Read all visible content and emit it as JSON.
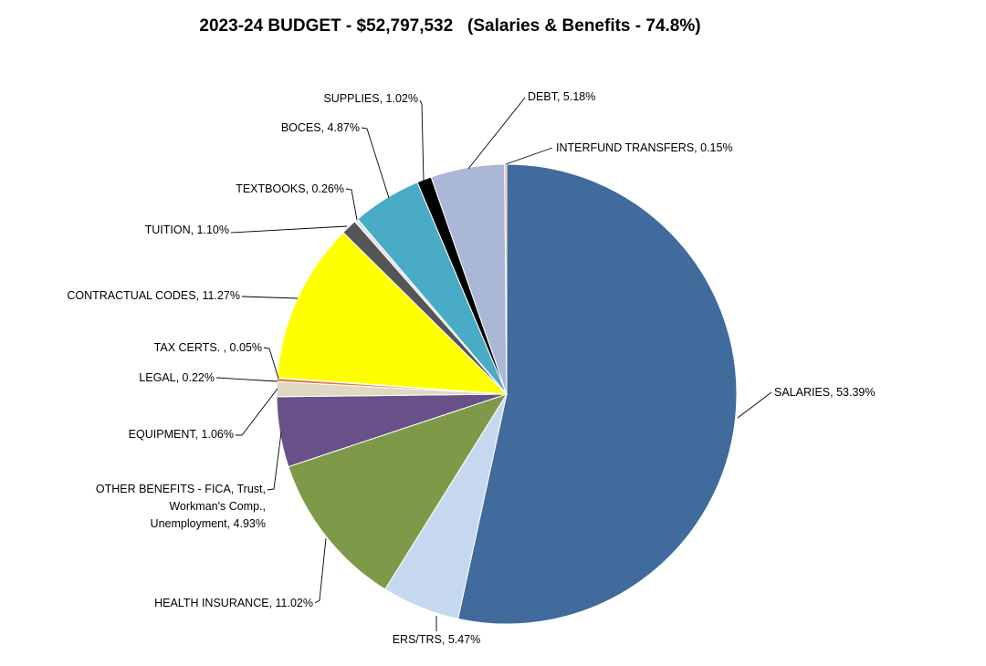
{
  "chart_data": {
    "type": "pie",
    "title": "2023-24 BUDGET - $52,797,532   (Salaries & Benefits - 74.8%)",
    "start_angle_deg": 0,
    "direction": "clockwise",
    "slices": [
      {
        "label": "SALARIES, 53.39%",
        "value": 53.39,
        "color": "#406b9c"
      },
      {
        "label": "ERS/TRS, 5.47%",
        "value": 5.47,
        "color": "#c6d8ef"
      },
      {
        "label": "HEALTH INSURANCE, 11.02%",
        "value": 11.02,
        "color": "#7e9a48"
      },
      {
        "label": "OTHER BENEFITS - FICA, Trust, Workman's Comp., Unemployment, 4.93%",
        "label_lines": [
          "OTHER BENEFITS - FICA, Trust,",
          "Workman's Comp.,",
          "Unemployment, 4.93%"
        ],
        "value": 4.93,
        "color": "#6a5088"
      },
      {
        "label": "EQUIPMENT, 1.06%",
        "value": 1.06,
        "color": "#ddd9c3"
      },
      {
        "label": "LEGAL, 0.22%",
        "value": 0.22,
        "color": "#e07b39"
      },
      {
        "label": "TAX CERTS. , 0.05%",
        "value": 0.05,
        "color": "#9c3230"
      },
      {
        "label": "CONTRACTUAL CODES, 11.27%",
        "value": 11.27,
        "color": "#ffff00"
      },
      {
        "label": "TUITION, 1.10%",
        "value": 1.1,
        "color": "#555555"
      },
      {
        "label": "TEXTBOOKS, 0.26%",
        "value": 0.26,
        "color": "#dde3ea"
      },
      {
        "label": "BOCES, 4.87%",
        "value": 4.87,
        "color": "#4aabc6"
      },
      {
        "label": "SUPPLIES, 1.02%",
        "value": 1.02,
        "color": "#000000"
      },
      {
        "label": "DEBT, 5.18%",
        "value": 5.18,
        "color": "#aab8d6"
      },
      {
        "label": "INTERFUND TRANSFERS, 0.15%",
        "value": 0.15,
        "color": "#e8a6a0"
      }
    ]
  }
}
